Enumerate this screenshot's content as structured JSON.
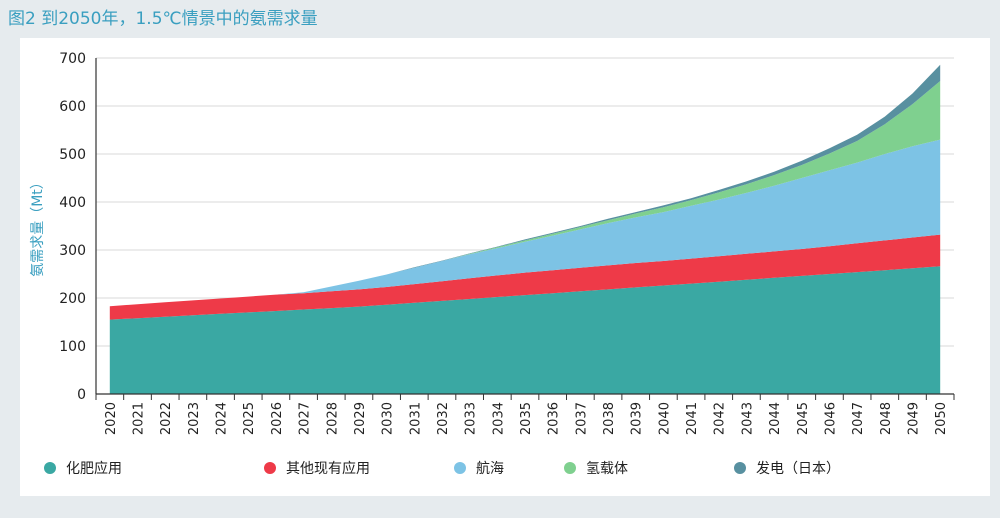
{
  "title": "图2 到2050年，1.5℃情景中的氨需求量",
  "chart_data": {
    "type": "area",
    "stacked": true,
    "ylabel": "氨需求量（Mt）",
    "xlabel": "",
    "ylim": [
      0,
      700
    ],
    "yticks": [
      0,
      100,
      200,
      300,
      400,
      500,
      600,
      700
    ],
    "grid": true,
    "legend_position": "bottom",
    "x": [
      "2020",
      "2021",
      "2022",
      "2023",
      "2024",
      "2025",
      "2026",
      "2027",
      "2028",
      "2029",
      "2030",
      "2031",
      "2032",
      "2033",
      "2034",
      "2035",
      "2036",
      "2037",
      "2038",
      "2039",
      "2040",
      "2041",
      "2042",
      "2043",
      "2044",
      "2045",
      "2046",
      "2047",
      "2048",
      "2049",
      "2050"
    ],
    "series": [
      {
        "name": "化肥应用",
        "color": "#3aa8a3",
        "values": [
          155,
          158,
          161,
          164,
          167,
          170,
          173,
          176,
          179,
          182,
          186,
          190,
          194,
          198,
          202,
          206,
          210,
          214,
          218,
          222,
          226,
          230,
          234,
          238,
          242,
          246,
          250,
          254,
          258,
          262,
          266
        ]
      },
      {
        "name": "其他现有应用",
        "color": "#ee3a48",
        "values": [
          28,
          29,
          30,
          31,
          32,
          33,
          34,
          34,
          35,
          36,
          37,
          39,
          41,
          43,
          45,
          47,
          48,
          49,
          50,
          51,
          51,
          52,
          53,
          54,
          55,
          56,
          58,
          60,
          62,
          64,
          66
        ]
      },
      {
        "name": "航海",
        "color": "#7dc3e5",
        "values": [
          0,
          0,
          0,
          0,
          0,
          0,
          0,
          2,
          10,
          18,
          26,
          34,
          42,
          50,
          57,
          64,
          72,
          80,
          88,
          95,
          102,
          110,
          118,
          127,
          137,
          148,
          158,
          168,
          180,
          190,
          198
        ]
      },
      {
        "name": "氢载体",
        "color": "#7fd08f",
        "values": [
          0,
          0,
          0,
          0,
          0,
          0,
          0,
          0,
          0,
          0,
          0,
          0,
          0,
          1,
          2,
          3,
          4,
          5,
          6,
          8,
          10,
          12,
          15,
          18,
          22,
          27,
          35,
          45,
          62,
          88,
          122
        ]
      },
      {
        "name": "发电（日本）",
        "color": "#5890a0",
        "values": [
          0,
          0,
          0,
          0,
          0,
          0,
          0,
          0,
          0,
          0,
          0,
          1,
          1,
          1,
          1,
          2,
          2,
          2,
          3,
          3,
          4,
          4,
          5,
          6,
          7,
          9,
          11,
          13,
          16,
          22,
          34
        ]
      }
    ]
  }
}
